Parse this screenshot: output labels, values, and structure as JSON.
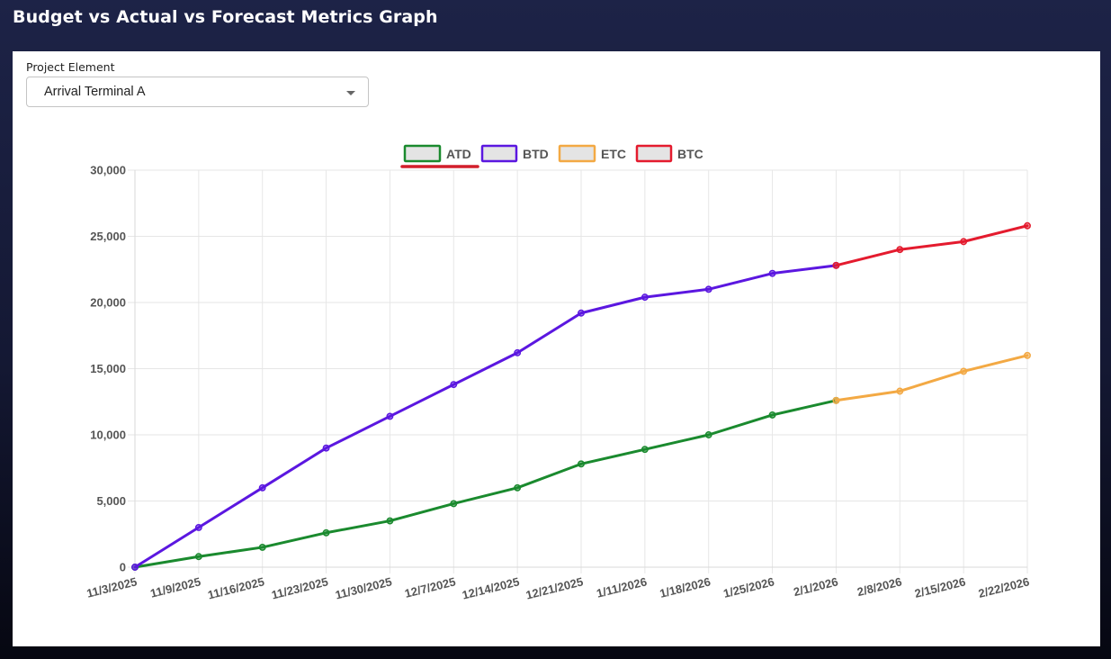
{
  "header": {
    "title": "Budget vs Actual vs Forecast Metrics Graph"
  },
  "filter": {
    "label": "Project Element",
    "selected": "Arrival Terminal A"
  },
  "icons": {
    "dropdown": "caret-down-icon"
  },
  "colors": {
    "ATD": "#1a8a2e",
    "BTD": "#5b17e0",
    "ETC": "#f3a944",
    "BTC": "#e41b2e",
    "legend_fill": "#e4e4e4",
    "active_legend_underline": "#d21f2b"
  },
  "chart_data": {
    "type": "line",
    "title": "",
    "xlabel": "",
    "ylabel": "",
    "ylim": [
      0,
      30000
    ],
    "yticks": [
      "0",
      "5,000",
      "10,000",
      "15,000",
      "20,000",
      "25,000",
      "30,000"
    ],
    "categories": [
      "11/3/2025",
      "11/9/2025",
      "11/16/2025",
      "11/23/2025",
      "11/30/2025",
      "12/7/2025",
      "12/14/2025",
      "12/21/2025",
      "1/11/2026",
      "1/18/2026",
      "1/25/2026",
      "2/1/2026",
      "2/8/2026",
      "2/15/2026",
      "2/22/2026"
    ],
    "legend_position": "top",
    "grid": true,
    "series": [
      {
        "name": "ATD",
        "values": [
          0,
          800,
          1500,
          2600,
          3500,
          4800,
          6000,
          7800,
          8900,
          10000,
          11500,
          12600,
          null,
          null,
          null
        ]
      },
      {
        "name": "BTD",
        "values": [
          0,
          3000,
          6000,
          9000,
          11400,
          13800,
          16200,
          19200,
          20400,
          21000,
          22200,
          22800,
          null,
          null,
          null
        ]
      },
      {
        "name": "ETC",
        "values": [
          null,
          null,
          null,
          null,
          null,
          null,
          null,
          null,
          null,
          null,
          null,
          12600,
          13300,
          14800,
          16000
        ]
      },
      {
        "name": "BTC",
        "values": [
          null,
          null,
          null,
          null,
          null,
          null,
          null,
          null,
          null,
          null,
          null,
          22800,
          24000,
          24600,
          25800
        ]
      }
    ]
  }
}
